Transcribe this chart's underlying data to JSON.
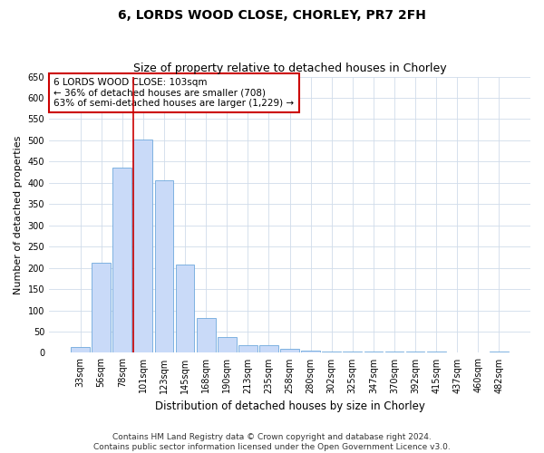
{
  "title": "6, LORDS WOOD CLOSE, CHORLEY, PR7 2FH",
  "subtitle": "Size of property relative to detached houses in Chorley",
  "xlabel": "Distribution of detached houses by size in Chorley",
  "ylabel": "Number of detached properties",
  "categories": [
    "33sqm",
    "56sqm",
    "78sqm",
    "101sqm",
    "123sqm",
    "145sqm",
    "168sqm",
    "190sqm",
    "213sqm",
    "235sqm",
    "258sqm",
    "280sqm",
    "302sqm",
    "325sqm",
    "347sqm",
    "370sqm",
    "392sqm",
    "415sqm",
    "437sqm",
    "460sqm",
    "482sqm"
  ],
  "values": [
    14,
    212,
    435,
    503,
    407,
    207,
    83,
    38,
    18,
    17,
    10,
    5,
    4,
    4,
    4,
    4,
    4,
    4,
    1,
    1,
    4
  ],
  "bar_color": "#c9daf8",
  "bar_edge_color": "#6fa8dc",
  "grid_color": "#d0dcea",
  "background_color": "#ffffff",
  "property_bin_index": 3,
  "annotation_line1": "6 LORDS WOOD CLOSE: 103sqm",
  "annotation_line2": "← 36% of detached houses are smaller (708)",
  "annotation_line3": "63% of semi-detached houses are larger (1,229) →",
  "vline_color": "#cc0000",
  "annotation_box_edge": "#cc0000",
  "ylim": [
    0,
    650
  ],
  "yticks": [
    0,
    50,
    100,
    150,
    200,
    250,
    300,
    350,
    400,
    450,
    500,
    550,
    600,
    650
  ],
  "footer_line1": "Contains HM Land Registry data © Crown copyright and database right 2024.",
  "footer_line2": "Contains public sector information licensed under the Open Government Licence v3.0.",
  "title_fontsize": 10,
  "subtitle_fontsize": 9,
  "xlabel_fontsize": 8.5,
  "ylabel_fontsize": 8,
  "tick_fontsize": 7,
  "annotation_fontsize": 7.5,
  "footer_fontsize": 6.5
}
